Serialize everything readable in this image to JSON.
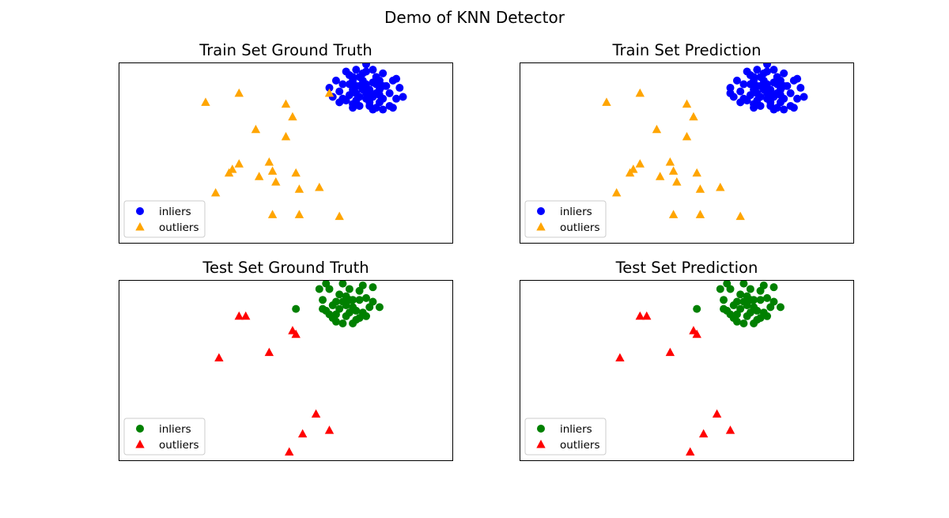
{
  "figure": {
    "title": "Demo of KNN Detector"
  },
  "colors": {
    "train_inlier": "#0000ff",
    "train_outlier": "#ffa500",
    "test_inlier": "#008000",
    "test_outlier": "#ff0000"
  },
  "chart_data": [
    {
      "type": "scatter",
      "title": "Train Set Ground Truth",
      "xlim": [
        -1.0,
        9.0
      ],
      "ylim": [
        -1.0,
        9.0
      ],
      "legend_position": "lower-left",
      "series": [
        {
          "name": "inliers",
          "marker": "circle",
          "color": "#0000ff",
          "points": [
            [
              5.7,
              7.8
            ],
            [
              6.0,
              8.0
            ],
            [
              6.2,
              7.7
            ],
            [
              6.4,
              7.3
            ],
            [
              6.6,
              7.9
            ],
            [
              6.8,
              7.5
            ],
            [
              5.9,
              7.2
            ],
            [
              6.1,
              6.9
            ],
            [
              6.5,
              6.8
            ],
            [
              6.9,
              7.0
            ],
            [
              6.3,
              8.4
            ],
            [
              5.6,
              7.4
            ],
            [
              6.7,
              8.2
            ],
            [
              7.0,
              7.7
            ],
            [
              5.8,
              6.9
            ],
            [
              6.2,
              7.1
            ],
            [
              6.4,
              7.8
            ],
            [
              6.6,
              7.1
            ],
            [
              6.0,
              7.5
            ],
            [
              6.8,
              6.8
            ],
            [
              5.5,
              8.0
            ],
            [
              6.1,
              8.6
            ],
            [
              6.4,
              8.9
            ],
            [
              6.6,
              8.6
            ],
            [
              5.9,
              8.3
            ],
            [
              7.1,
              7.3
            ],
            [
              7.2,
              8.0
            ],
            [
              7.3,
              7.0
            ],
            [
              5.4,
              7.1
            ],
            [
              6.5,
              6.6
            ],
            [
              6.2,
              6.6
            ],
            [
              6.0,
              6.7
            ],
            [
              6.7,
              6.5
            ],
            [
              6.9,
              6.4
            ],
            [
              7.1,
              6.6
            ],
            [
              5.6,
              6.8
            ],
            [
              5.8,
              8.5
            ],
            [
              6.3,
              8.0
            ],
            [
              6.5,
              7.5
            ],
            [
              6.1,
              7.3
            ],
            [
              5.9,
              7.8
            ],
            [
              6.7,
              7.3
            ],
            [
              6.4,
              7.0
            ],
            [
              6.8,
              8.0
            ],
            [
              6.2,
              8.2
            ],
            [
              7.4,
              7.6
            ],
            [
              7.5,
              7.1
            ],
            [
              6.0,
              6.5
            ],
            [
              6.6,
              6.4
            ],
            [
              5.3,
              7.6
            ],
            [
              6.9,
              7.7
            ],
            [
              6.3,
              7.5
            ],
            [
              6.5,
              7.2
            ],
            [
              6.1,
              7.7
            ],
            [
              6.7,
              7.8
            ],
            [
              5.7,
              7.0
            ],
            [
              6.0,
              8.2
            ],
            [
              6.8,
              7.2
            ],
            [
              6.4,
              8.5
            ],
            [
              6.9,
              8.4
            ],
            [
              7.3,
              8.1
            ],
            [
              7.2,
              6.5
            ]
          ]
        },
        {
          "name": "outliers",
          "marker": "triangle",
          "color": "#ffa500",
          "points": [
            [
              1.6,
              6.8
            ],
            [
              2.6,
              7.3
            ],
            [
              4.0,
              6.7
            ],
            [
              4.2,
              6.0
            ],
            [
              3.1,
              5.3
            ],
            [
              4.0,
              4.9
            ],
            [
              3.6,
              3.0
            ],
            [
              3.2,
              2.7
            ],
            [
              2.4,
              3.1
            ],
            [
              2.3,
              2.9
            ],
            [
              1.9,
              1.8
            ],
            [
              3.7,
              2.4
            ],
            [
              4.3,
              2.9
            ],
            [
              2.6,
              3.4
            ],
            [
              3.5,
              3.5
            ],
            [
              4.4,
              2.0
            ],
            [
              5.0,
              2.1
            ],
            [
              4.4,
              0.6
            ],
            [
              5.6,
              0.5
            ],
            [
              3.6,
              0.6
            ],
            [
              5.3,
              7.3
            ]
          ]
        }
      ]
    },
    {
      "type": "scatter",
      "title": "Train Set Prediction",
      "xlim": [
        -1.0,
        9.0
      ],
      "ylim": [
        -1.0,
        9.0
      ],
      "legend_position": "lower-left",
      "series": [
        {
          "name": "inliers",
          "marker": "circle",
          "color": "#0000ff",
          "points": [
            [
              5.7,
              7.8
            ],
            [
              6.0,
              8.0
            ],
            [
              6.2,
              7.7
            ],
            [
              6.4,
              7.3
            ],
            [
              6.6,
              7.9
            ],
            [
              6.8,
              7.5
            ],
            [
              5.9,
              7.2
            ],
            [
              6.1,
              6.9
            ],
            [
              6.5,
              6.8
            ],
            [
              6.9,
              7.0
            ],
            [
              6.3,
              8.4
            ],
            [
              5.6,
              7.4
            ],
            [
              6.7,
              8.2
            ],
            [
              7.0,
              7.7
            ],
            [
              5.8,
              6.9
            ],
            [
              6.2,
              7.1
            ],
            [
              6.4,
              7.8
            ],
            [
              6.6,
              7.1
            ],
            [
              6.0,
              7.5
            ],
            [
              6.8,
              6.8
            ],
            [
              5.5,
              8.0
            ],
            [
              6.1,
              8.6
            ],
            [
              6.4,
              8.9
            ],
            [
              6.6,
              8.6
            ],
            [
              5.9,
              8.3
            ],
            [
              7.1,
              7.3
            ],
            [
              7.2,
              8.0
            ],
            [
              7.3,
              7.0
            ],
            [
              5.4,
              7.1
            ],
            [
              6.5,
              6.6
            ],
            [
              6.2,
              6.6
            ],
            [
              6.0,
              6.7
            ],
            [
              6.7,
              6.5
            ],
            [
              6.9,
              6.4
            ],
            [
              7.1,
              6.6
            ],
            [
              5.6,
              6.8
            ],
            [
              5.8,
              8.5
            ],
            [
              6.3,
              8.0
            ],
            [
              6.5,
              7.5
            ],
            [
              6.1,
              7.3
            ],
            [
              5.9,
              7.8
            ],
            [
              6.7,
              7.3
            ],
            [
              6.4,
              7.0
            ],
            [
              6.8,
              8.0
            ],
            [
              6.2,
              8.2
            ],
            [
              7.4,
              7.6
            ],
            [
              7.5,
              7.1
            ],
            [
              6.0,
              6.5
            ],
            [
              6.6,
              6.4
            ],
            [
              5.3,
              7.6
            ],
            [
              6.9,
              7.7
            ],
            [
              6.3,
              7.5
            ],
            [
              6.5,
              7.2
            ],
            [
              6.1,
              7.7
            ],
            [
              6.7,
              7.8
            ],
            [
              5.7,
              7.0
            ],
            [
              6.0,
              8.2
            ],
            [
              6.8,
              7.2
            ],
            [
              6.4,
              8.5
            ],
            [
              6.9,
              8.4
            ],
            [
              7.3,
              8.1
            ],
            [
              7.2,
              6.5
            ],
            [
              5.3,
              7.3
            ]
          ]
        },
        {
          "name": "outliers",
          "marker": "triangle",
          "color": "#ffa500",
          "points": [
            [
              1.6,
              6.8
            ],
            [
              2.6,
              7.3
            ],
            [
              4.0,
              6.7
            ],
            [
              4.2,
              6.0
            ],
            [
              3.1,
              5.3
            ],
            [
              4.0,
              4.9
            ],
            [
              3.6,
              3.0
            ],
            [
              3.2,
              2.7
            ],
            [
              2.4,
              3.1
            ],
            [
              2.3,
              2.9
            ],
            [
              1.9,
              1.8
            ],
            [
              3.7,
              2.4
            ],
            [
              4.3,
              2.9
            ],
            [
              2.6,
              3.4
            ],
            [
              3.5,
              3.5
            ],
            [
              4.4,
              2.0
            ],
            [
              5.0,
              2.1
            ],
            [
              4.4,
              0.6
            ],
            [
              5.6,
              0.5
            ],
            [
              3.6,
              0.6
            ]
          ]
        }
      ]
    },
    {
      "type": "scatter",
      "title": "Test Set Ground Truth",
      "xlim": [
        -1.0,
        9.0
      ],
      "ylim": [
        -1.0,
        9.0
      ],
      "legend_position": "lower-left",
      "series": [
        {
          "name": "inliers",
          "marker": "circle",
          "color": "#008000",
          "points": [
            [
              5.2,
              7.3
            ],
            [
              5.5,
              7.8
            ],
            [
              5.8,
              7.0
            ],
            [
              6.0,
              7.5
            ],
            [
              5.6,
              8.2
            ],
            [
              6.2,
              7.9
            ],
            [
              5.4,
              6.9
            ],
            [
              5.9,
              7.9
            ],
            [
              6.3,
              7.2
            ],
            [
              5.7,
              6.6
            ],
            [
              5.3,
              8.5
            ],
            [
              6.4,
              8.0
            ],
            [
              6.5,
              7.5
            ],
            [
              5.9,
              8.5
            ],
            [
              6.1,
              6.8
            ],
            [
              5.1,
              7.9
            ],
            [
              5.5,
              7.1
            ],
            [
              6.2,
              8.4
            ],
            [
              5.8,
              7.6
            ],
            [
              6.0,
              6.6
            ],
            [
              5.2,
              8.8
            ],
            [
              5.7,
              8.8
            ],
            [
              6.6,
              8.6
            ],
            [
              6.8,
              7.5
            ],
            [
              5.4,
              7.6
            ],
            [
              6.1,
              7.3
            ],
            [
              5.6,
              7.4
            ],
            [
              6.4,
              7.0
            ],
            [
              5.3,
              7.1
            ],
            [
              5.9,
              7.2
            ],
            [
              6.3,
              8.7
            ],
            [
              5.0,
              8.5
            ],
            [
              5.5,
              6.7
            ],
            [
              6.6,
              7.8
            ],
            [
              5.8,
              8.1
            ],
            [
              6.0,
              7.9
            ],
            [
              5.1,
              7.4
            ],
            [
              4.3,
              7.4
            ],
            [
              6.2,
              6.9
            ],
            [
              5.7,
              7.8
            ]
          ]
        },
        {
          "name": "outliers",
          "marker": "triangle",
          "color": "#ff0000",
          "points": [
            [
              2.6,
              7.0
            ],
            [
              2.8,
              7.0
            ],
            [
              4.2,
              6.2
            ],
            [
              4.3,
              6.0
            ],
            [
              2.0,
              4.7
            ],
            [
              3.5,
              5.0
            ],
            [
              4.9,
              1.6
            ],
            [
              5.3,
              0.7
            ],
            [
              4.5,
              0.5
            ],
            [
              4.1,
              -0.5
            ]
          ]
        }
      ]
    },
    {
      "type": "scatter",
      "title": "Test Set Prediction",
      "xlim": [
        -1.0,
        9.0
      ],
      "ylim": [
        -1.0,
        9.0
      ],
      "legend_position": "lower-left",
      "series": [
        {
          "name": "inliers",
          "marker": "circle",
          "color": "#008000",
          "points": [
            [
              5.2,
              7.3
            ],
            [
              5.5,
              7.8
            ],
            [
              5.8,
              7.0
            ],
            [
              6.0,
              7.5
            ],
            [
              5.6,
              8.2
            ],
            [
              6.2,
              7.9
            ],
            [
              5.4,
              6.9
            ],
            [
              5.9,
              7.9
            ],
            [
              6.3,
              7.2
            ],
            [
              5.7,
              6.6
            ],
            [
              5.3,
              8.5
            ],
            [
              6.4,
              8.0
            ],
            [
              6.5,
              7.5
            ],
            [
              5.9,
              8.5
            ],
            [
              6.1,
              6.8
            ],
            [
              5.1,
              7.9
            ],
            [
              5.5,
              7.1
            ],
            [
              6.2,
              8.4
            ],
            [
              5.8,
              7.6
            ],
            [
              6.0,
              6.6
            ],
            [
              5.2,
              8.8
            ],
            [
              5.7,
              8.8
            ],
            [
              6.6,
              8.6
            ],
            [
              6.8,
              7.5
            ],
            [
              5.4,
              7.6
            ],
            [
              6.1,
              7.3
            ],
            [
              5.6,
              7.4
            ],
            [
              6.4,
              7.0
            ],
            [
              5.3,
              7.1
            ],
            [
              5.9,
              7.2
            ],
            [
              6.3,
              8.7
            ],
            [
              5.0,
              8.5
            ],
            [
              5.5,
              6.7
            ],
            [
              6.6,
              7.8
            ],
            [
              5.8,
              8.1
            ],
            [
              6.0,
              7.9
            ],
            [
              5.1,
              7.4
            ],
            [
              4.3,
              7.4
            ],
            [
              6.2,
              6.9
            ],
            [
              5.7,
              7.8
            ]
          ]
        },
        {
          "name": "outliers",
          "marker": "triangle",
          "color": "#ff0000",
          "points": [
            [
              2.6,
              7.0
            ],
            [
              2.8,
              7.0
            ],
            [
              4.2,
              6.2
            ],
            [
              4.3,
              6.0
            ],
            [
              2.0,
              4.7
            ],
            [
              3.5,
              5.0
            ],
            [
              4.9,
              1.6
            ],
            [
              5.3,
              0.7
            ],
            [
              4.5,
              0.5
            ],
            [
              4.1,
              -0.5
            ]
          ]
        }
      ]
    }
  ]
}
